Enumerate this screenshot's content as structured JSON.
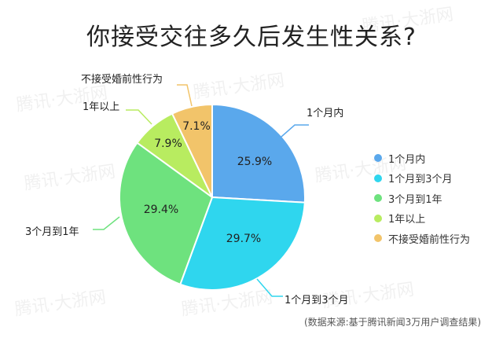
{
  "title": "你接受交往多久后发生性关系?",
  "source": "(数据来源:基于腾讯新闻3万用户调查结果)",
  "watermark": "腾讯·大浙网",
  "chart_data": {
    "type": "pie",
    "title": "你接受交往多久后发生性关系?",
    "slices": [
      {
        "label": "1个月内",
        "value": 25.9,
        "value_label": "25.9%",
        "color": "#5aa8ec"
      },
      {
        "label": "1个月到3个月",
        "value": 29.7,
        "value_label": "29.7%",
        "color": "#2fd6ee"
      },
      {
        "label": "3个月到1年",
        "value": 29.4,
        "value_label": "29.4%",
        "color": "#6ee27e"
      },
      {
        "label": "1年以上",
        "value": 7.9,
        "value_label": "7.9%",
        "color": "#b8ec60"
      },
      {
        "label": "不接受婚前性行为",
        "value": 7.1,
        "value_label": "7.1%",
        "color": "#f2c46a"
      }
    ],
    "legend_position": "right"
  }
}
